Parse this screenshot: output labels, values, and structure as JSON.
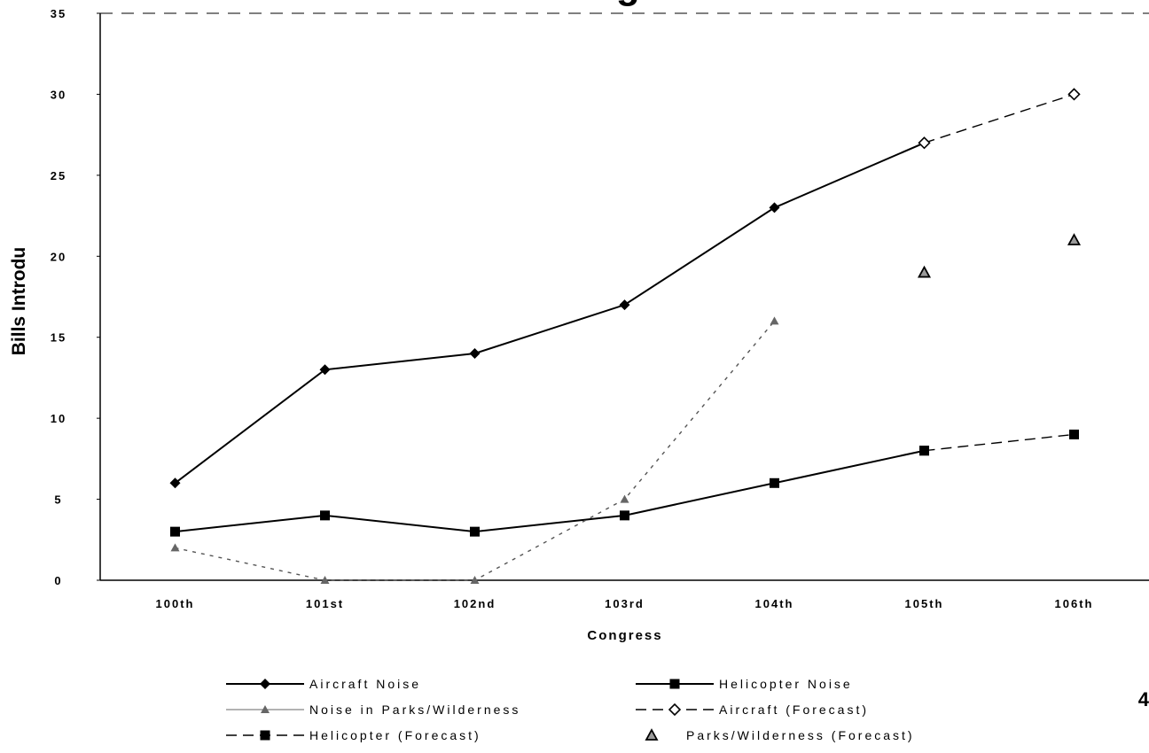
{
  "chart_data": {
    "type": "line",
    "title": "in Noise Legislation",
    "xlabel": "Congress",
    "ylabel": "Bills Introdu",
    "categories": [
      "100th",
      "101st",
      "102nd",
      "103rd",
      "104th",
      "105th",
      "106th"
    ],
    "ylim": [
      0,
      35
    ],
    "yticks": [
      0,
      5,
      10,
      15,
      20,
      25,
      30,
      35
    ],
    "grid": false,
    "legend_position": "bottom",
    "series": [
      {
        "name": "Aircraft Noise",
        "values": [
          6,
          13,
          14,
          17,
          23,
          27,
          null
        ],
        "style": "solid",
        "marker": "diamond",
        "color": "#000000"
      },
      {
        "name": "Helicopter Noise",
        "values": [
          3,
          4,
          3,
          4,
          6,
          8,
          null
        ],
        "style": "solid",
        "marker": "square",
        "color": "#000000"
      },
      {
        "name": "Noise in Parks/Wilderness",
        "values": [
          2,
          0,
          0,
          5,
          16,
          null,
          null
        ],
        "style": "dashed",
        "marker": "triangle",
        "color": "#555555"
      },
      {
        "name": "Aircraft (Forecast)",
        "values": [
          null,
          null,
          null,
          null,
          null,
          27,
          30
        ],
        "style": "dashed",
        "marker": "diamond-open",
        "color": "#000000"
      },
      {
        "name": "Helicopter (Forecast)",
        "values": [
          null,
          null,
          null,
          null,
          null,
          8,
          9
        ],
        "style": "dashed",
        "marker": "square",
        "color": "#000000"
      },
      {
        "name": "Parks/Wilderness (Forecast)",
        "values": [
          null,
          null,
          null,
          null,
          null,
          19,
          21
        ],
        "style": "none",
        "marker": "triangle-hatched",
        "color": "#000000"
      }
    ]
  },
  "page_number": "4"
}
